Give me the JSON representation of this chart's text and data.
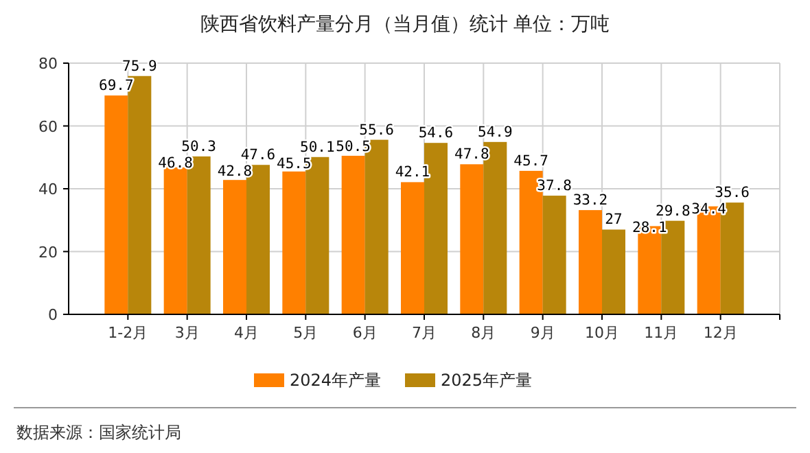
{
  "chart_data": {
    "type": "bar",
    "title": "陕西省饮料产量分月（当月值）统计 单位：万吨",
    "categories": [
      "1-2月",
      "3月",
      "4月",
      "5月",
      "6月",
      "7月",
      "8月",
      "9月",
      "10月",
      "11月",
      "12月"
    ],
    "series": [
      {
        "name": "2024年产量",
        "color": "#ff8000",
        "values": [
          69.7,
          46.8,
          42.8,
          45.5,
          50.5,
          42.1,
          47.8,
          45.7,
          33.2,
          28.1,
          34.4
        ]
      },
      {
        "name": "2025年产量",
        "color": "#b8860b",
        "values": [
          75.9,
          50.3,
          47.6,
          50.1,
          55.6,
          54.6,
          54.9,
          37.8,
          27,
          29.8,
          35.6
        ]
      }
    ],
    "ylim": [
      0,
      80
    ],
    "yticks": [
      0,
      20,
      40,
      60,
      80
    ],
    "grid": true,
    "legend": "bottom",
    "data_labels": true,
    "annotations": [
      "数据来源：国家统计局"
    ]
  }
}
